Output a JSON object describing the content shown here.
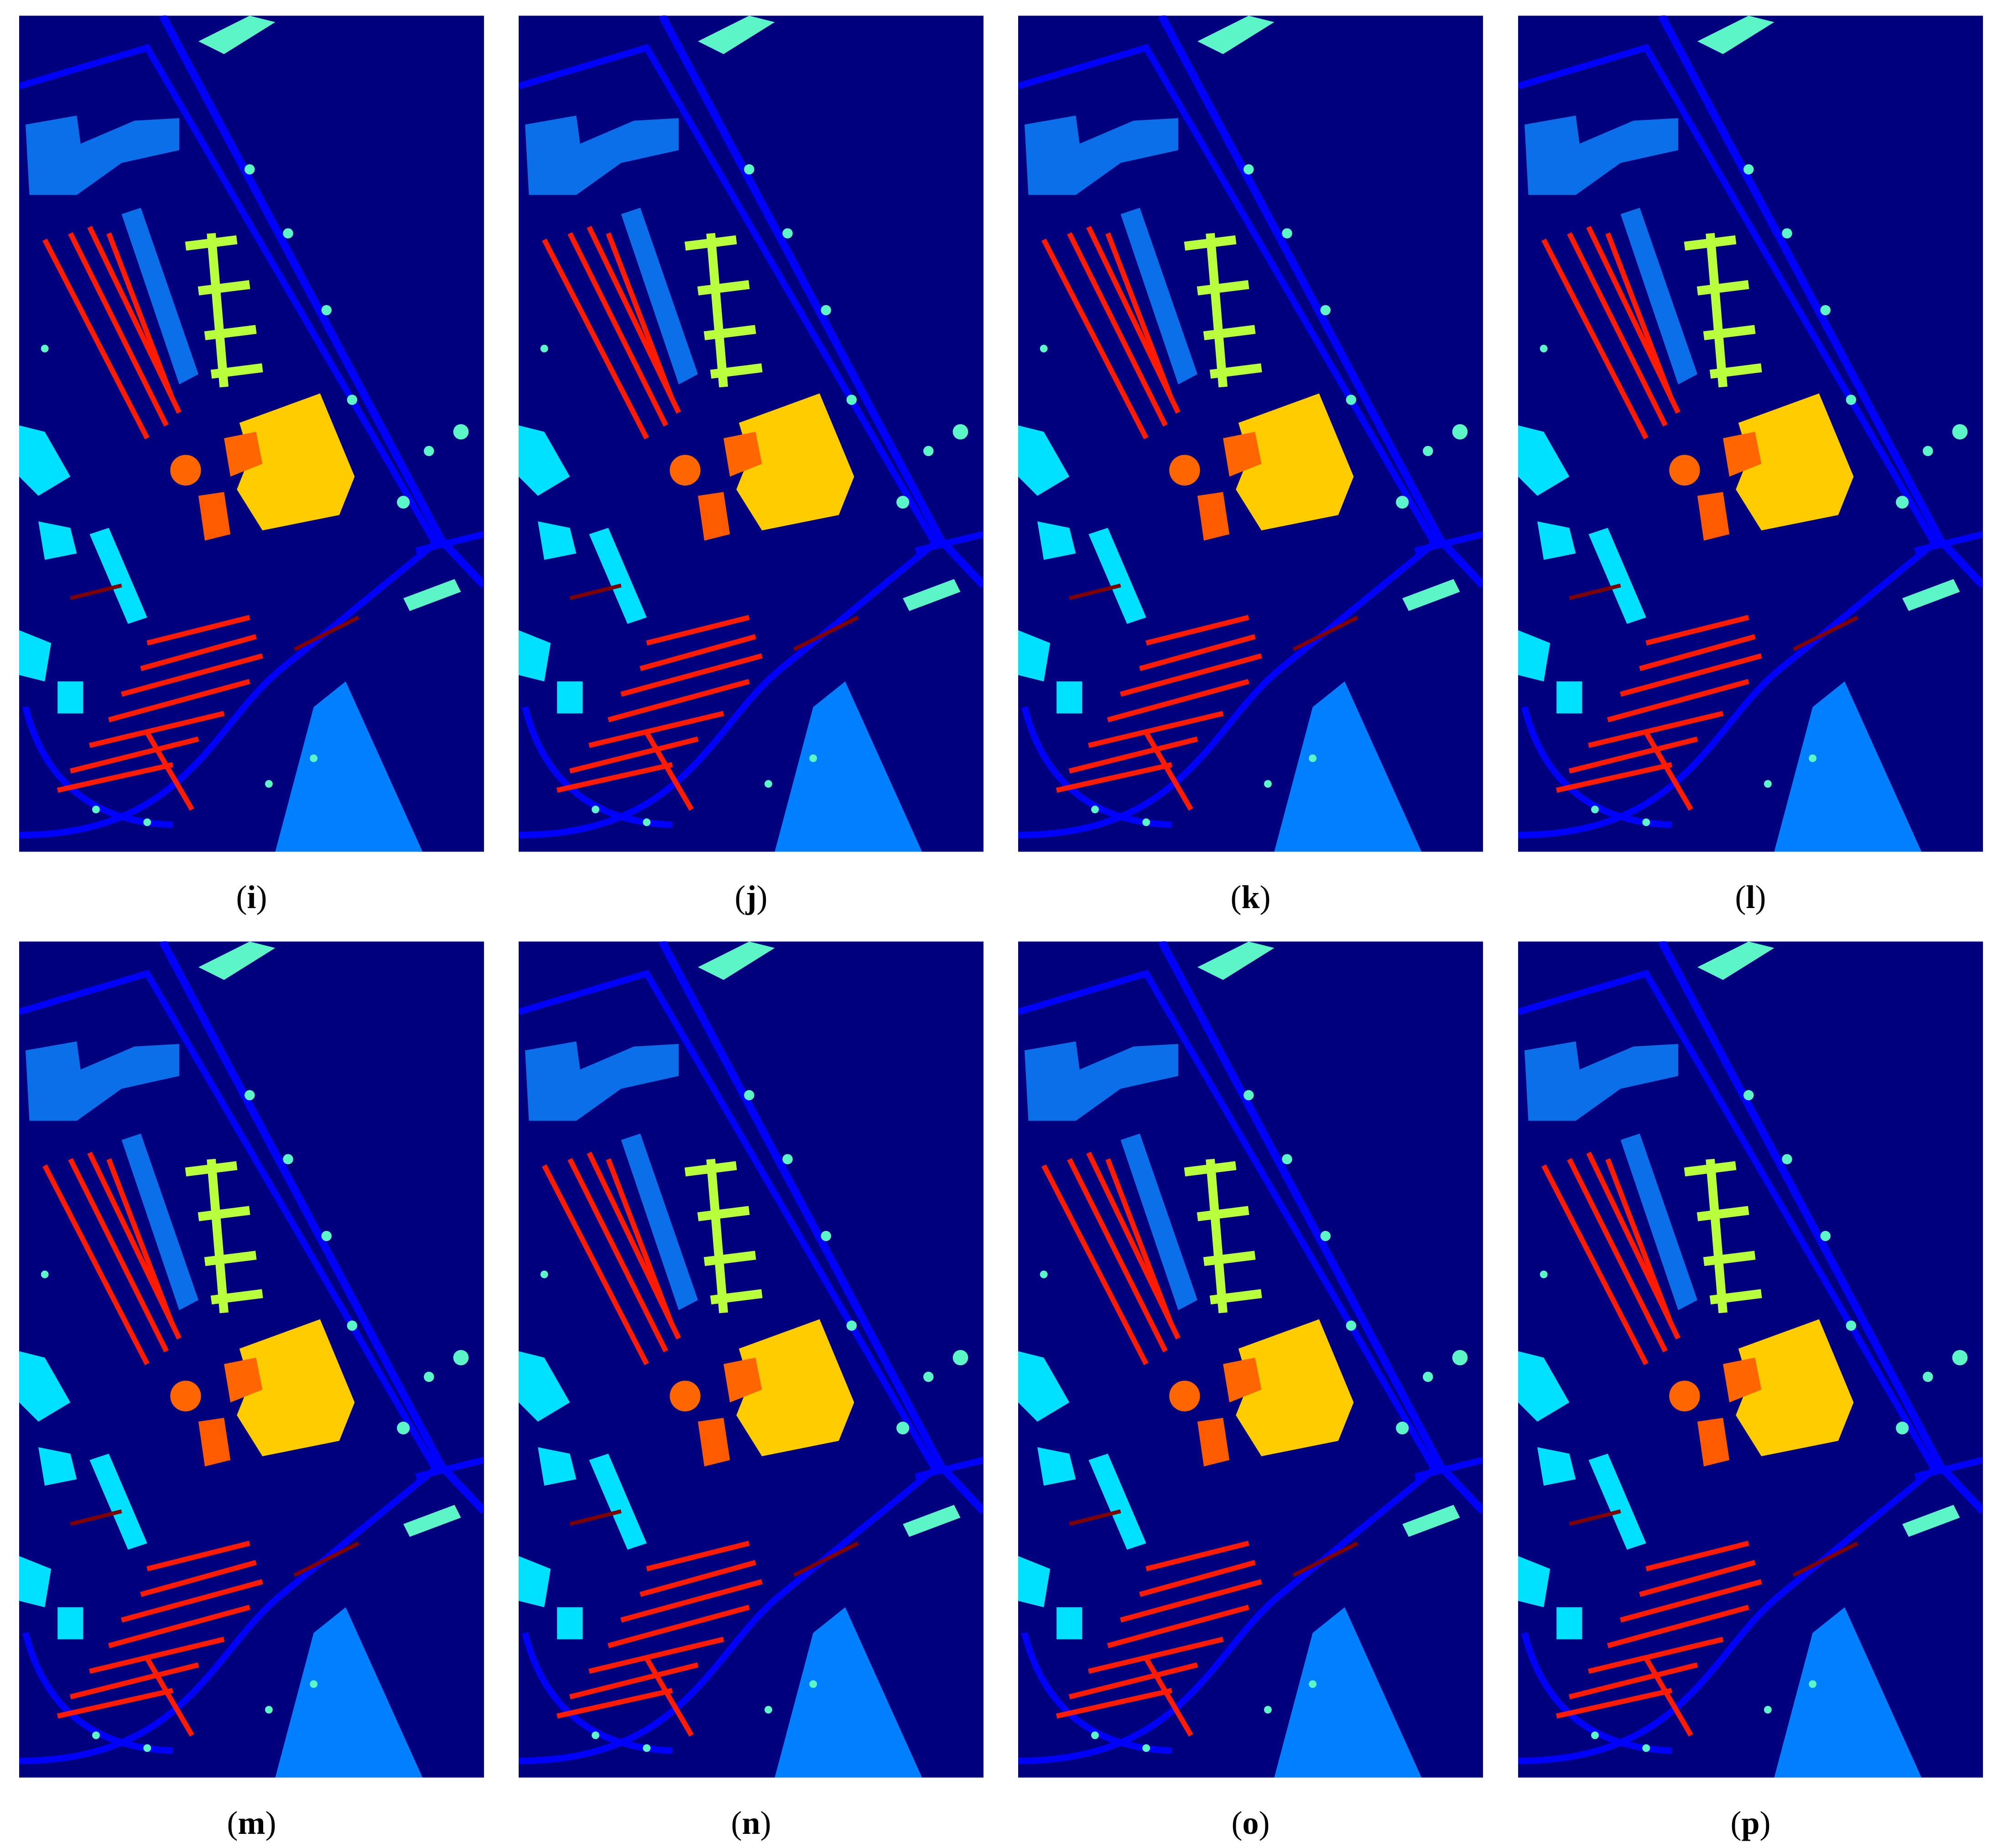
{
  "panels": [
    {
      "label": "(i)"
    },
    {
      "label": "(j)"
    },
    {
      "label": "(k)"
    },
    {
      "label": "(l)"
    },
    {
      "label": "(m)"
    },
    {
      "label": "(n)"
    },
    {
      "label": "(o)"
    },
    {
      "label": "(p)"
    }
  ]
}
